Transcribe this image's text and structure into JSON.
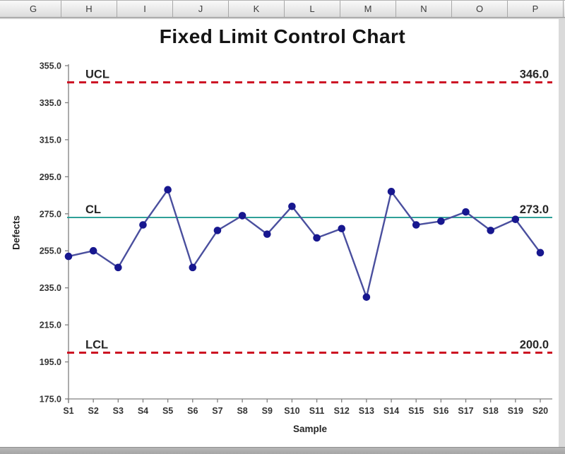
{
  "spreadsheet": {
    "column_headers": [
      "G",
      "H",
      "I",
      "J",
      "K",
      "L",
      "M",
      "N",
      "O",
      "P"
    ]
  },
  "chart_data": {
    "type": "line",
    "title": "Fixed Limit Control Chart",
    "xlabel": "Sample",
    "ylabel": "Defects",
    "categories": [
      "S1",
      "S2",
      "S3",
      "S4",
      "S5",
      "S6",
      "S7",
      "S8",
      "S9",
      "S10",
      "S11",
      "S12",
      "S13",
      "S14",
      "S15",
      "S16",
      "S17",
      "S18",
      "S19",
      "S20"
    ],
    "series": [
      {
        "name": "Defects",
        "values": [
          252,
          255,
          246,
          269,
          288,
          246,
          266,
          274,
          264,
          279,
          262,
          267,
          230,
          287,
          269,
          271,
          276,
          266,
          272,
          254
        ],
        "line_color": "#4a4f9e",
        "marker_color": "#17178f"
      }
    ],
    "control_lines": [
      {
        "name": "UCL",
        "label": "UCL",
        "value": 346.0,
        "display": "346.0",
        "style": "dashed",
        "color": "#cc1122"
      },
      {
        "name": "CL",
        "label": "CL",
        "value": 273.0,
        "display": "273.0",
        "style": "solid",
        "color": "#2fa098"
      },
      {
        "name": "LCL",
        "label": "LCL",
        "value": 200.0,
        "display": "200.0",
        "style": "dashed",
        "color": "#cc1122"
      }
    ],
    "ylim": [
      175,
      355
    ],
    "ytick_step": 20,
    "ytick_labels": [
      "175.0",
      "195.0",
      "215.0",
      "235.0",
      "255.0",
      "275.0",
      "295.0",
      "315.0",
      "335.0",
      "355.0"
    ],
    "grid": false,
    "legend": "none"
  },
  "colors": {
    "axis": "#808080",
    "tick_text": "#333333",
    "header_bg": "#e4e4e4",
    "scrollbar": "#ababab"
  }
}
